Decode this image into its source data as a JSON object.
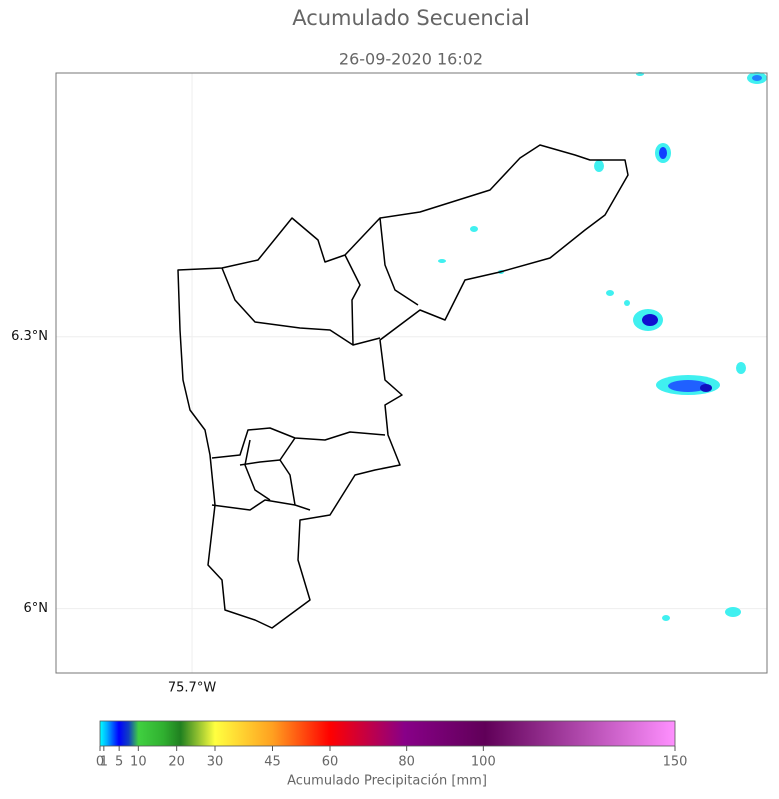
{
  "title": "Acumulado Secuencial",
  "subtitle": "26-09-2020 16:02",
  "map": {
    "lat_lim": [
      5.929,
      6.591
    ],
    "lon_lim": [
      -75.85,
      -75.066
    ],
    "lat_ticks": [
      {
        "value": 6.3,
        "label": "6.3°N"
      },
      {
        "value": 6,
        "label": "6°N"
      }
    ],
    "lon_ticks": [
      {
        "value": -75.7,
        "label": "75.7°W"
      }
    ]
  },
  "colorbar": {
    "label": "Acumulado Precipitación [mm]",
    "lim": [
      0,
      150
    ],
    "ticks": [
      0,
      1,
      5,
      10,
      20,
      30,
      45,
      60,
      80,
      100,
      150
    ]
  }
}
